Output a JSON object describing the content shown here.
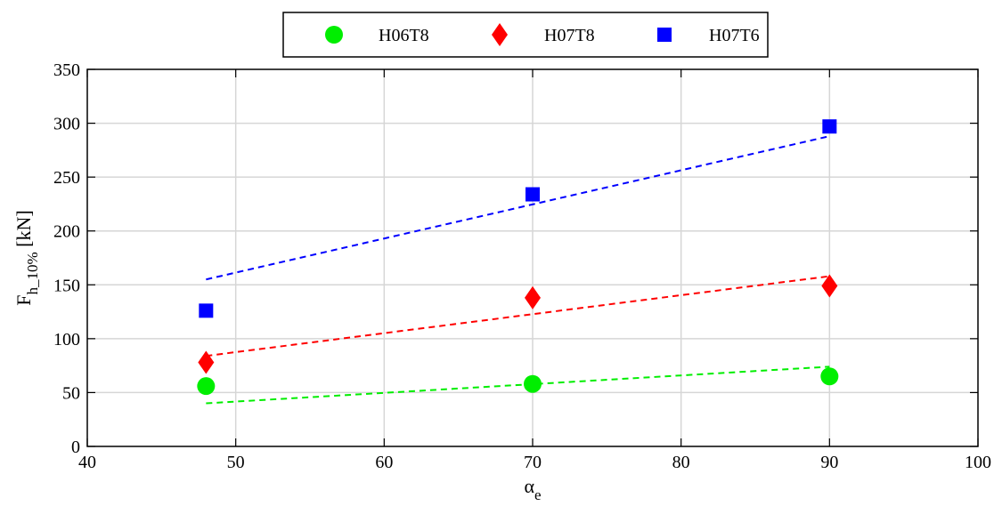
{
  "chart_data": {
    "type": "scatter",
    "xlabel": {
      "symbol": "α",
      "subscript": "e"
    },
    "ylabel": {
      "symbol": "F",
      "subscript": "h_10%",
      "unit": " [kN]"
    },
    "xlim": [
      40,
      100
    ],
    "ylim": [
      0,
      350
    ],
    "xticks": [
      40,
      50,
      60,
      70,
      80,
      90,
      100
    ],
    "yticks": [
      0,
      50,
      100,
      150,
      200,
      250,
      300,
      350
    ],
    "grid": true,
    "legend_position": "top-center",
    "series": [
      {
        "name": "H06T8",
        "marker": "circle",
        "color": "#00ee00",
        "x": [
          48,
          70,
          90
        ],
        "y": [
          56,
          58,
          65
        ],
        "trendline": {
          "x": [
            48,
            90
          ],
          "y": [
            40,
            74
          ],
          "style": "dashed"
        }
      },
      {
        "name": "H07T8",
        "marker": "diamond",
        "color": "#ff0000",
        "x": [
          48,
          70,
          90
        ],
        "y": [
          78,
          138,
          149
        ],
        "trendline": {
          "x": [
            48,
            90
          ],
          "y": [
            84,
            158
          ],
          "style": "dashed"
        }
      },
      {
        "name": "H07T6",
        "marker": "square",
        "color": "#0000ff",
        "x": [
          48,
          70,
          90
        ],
        "y": [
          126,
          234,
          297
        ],
        "trendline": {
          "x": [
            48,
            90
          ],
          "y": [
            155,
            288
          ],
          "style": "dashed"
        }
      }
    ]
  }
}
